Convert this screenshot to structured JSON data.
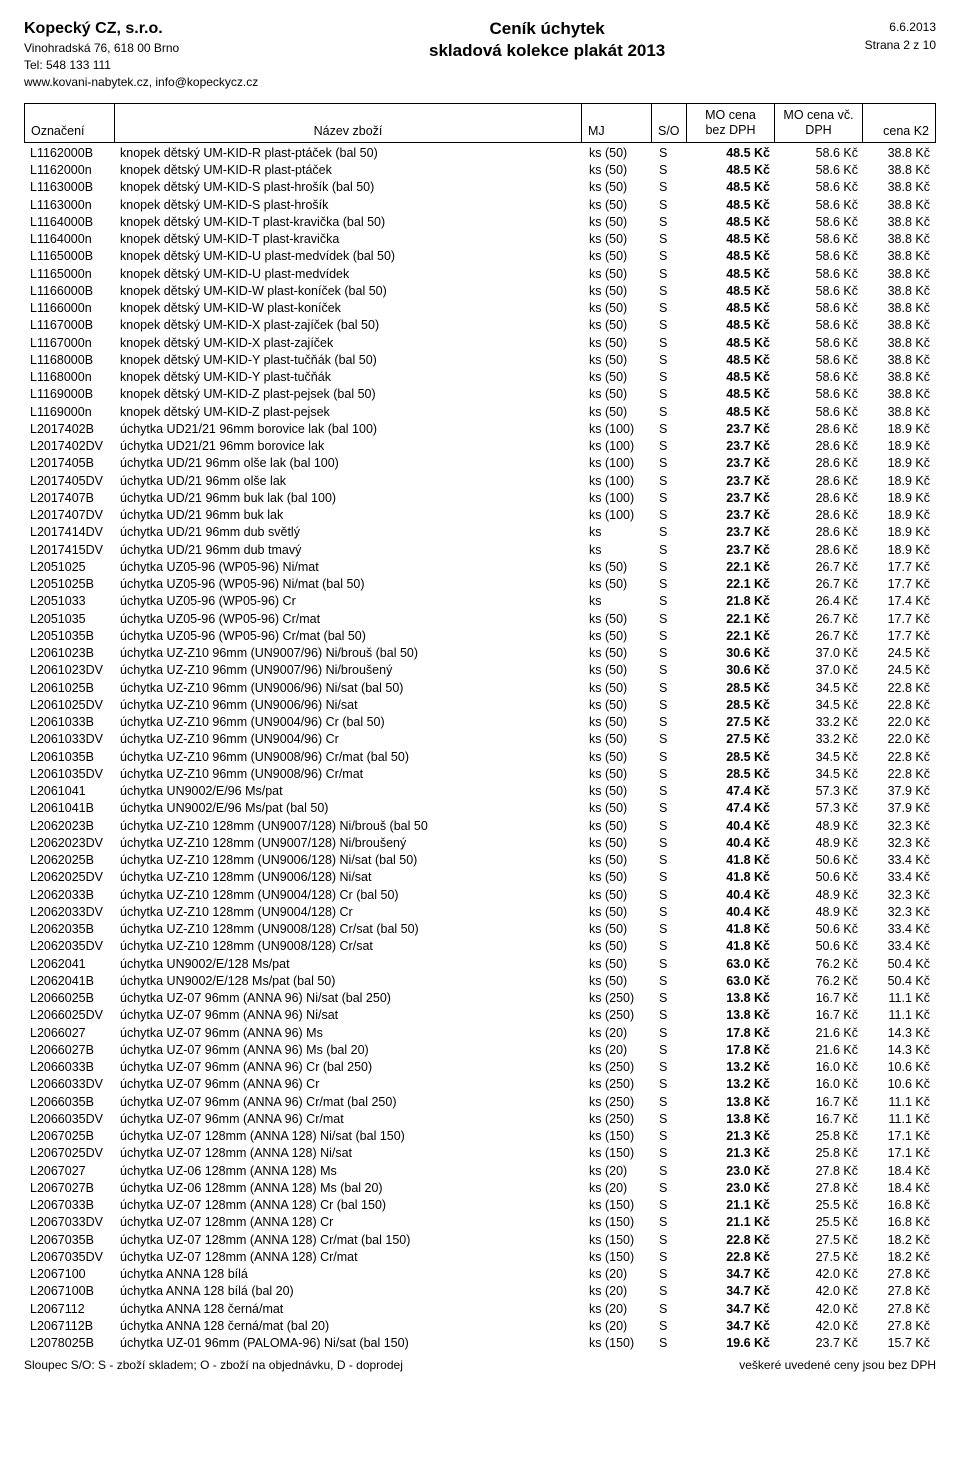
{
  "company": {
    "name": "Kopecký CZ, s.r.o.",
    "addr": "Vinohradská 76, 618 00 Brno",
    "tel": "Tel: 548 133 111",
    "web": "www.kovani-nabytek.cz, info@kopeckycz.cz"
  },
  "title": {
    "line1": "Ceník úchytek",
    "line2": "skladová kolekce plakát 2013"
  },
  "meta": {
    "date": "6.6.2013",
    "page": "Strana 2 z 10"
  },
  "columns": {
    "code": "Označení",
    "name": "Název zboží",
    "mj": "MJ",
    "so": "S/O",
    "mo1": "MO cena",
    "mo2": "bez DPH",
    "dph1": "MO cena vč.",
    "dph2": "DPH",
    "k2": "cena K2"
  },
  "footer": {
    "left": "Sloupec S/O: S - zboží skladem; O - zboží na objednávku, D - doprodej",
    "right": "veškeré uvedené ceny jsou bez DPH"
  },
  "rows": [
    {
      "c": "L1162000B",
      "n": "knopek dětský UM-KID-R plast-ptáček (bal 50)",
      "mj": "ks (50)",
      "so": "S",
      "mo": "48.5 Kč",
      "dph": "58.6 Kč",
      "k2": "38.8 Kč"
    },
    {
      "c": "L1162000n",
      "n": "knopek dětský UM-KID-R plast-ptáček",
      "mj": "ks (50)",
      "so": "S",
      "mo": "48.5 Kč",
      "dph": "58.6 Kč",
      "k2": "38.8 Kč"
    },
    {
      "c": "L1163000B",
      "n": "knopek dětský UM-KID-S plast-hrošík (bal 50)",
      "mj": "ks (50)",
      "so": "S",
      "mo": "48.5 Kč",
      "dph": "58.6 Kč",
      "k2": "38.8 Kč"
    },
    {
      "c": "L1163000n",
      "n": "knopek dětský UM-KID-S plast-hrošík",
      "mj": "ks (50)",
      "so": "S",
      "mo": "48.5 Kč",
      "dph": "58.6 Kč",
      "k2": "38.8 Kč"
    },
    {
      "c": "L1164000B",
      "n": "knopek dětský UM-KID-T plast-kravička (bal 50)",
      "mj": "ks (50)",
      "so": "S",
      "mo": "48.5 Kč",
      "dph": "58.6 Kč",
      "k2": "38.8 Kč"
    },
    {
      "c": "L1164000n",
      "n": "knopek dětský UM-KID-T plast-kravička",
      "mj": "ks (50)",
      "so": "S",
      "mo": "48.5 Kč",
      "dph": "58.6 Kč",
      "k2": "38.8 Kč"
    },
    {
      "c": "L1165000B",
      "n": "knopek dětský UM-KID-U plast-medvídek (bal 50)",
      "mj": "ks (50)",
      "so": "S",
      "mo": "48.5 Kč",
      "dph": "58.6 Kč",
      "k2": "38.8 Kč"
    },
    {
      "c": "L1165000n",
      "n": "knopek dětský UM-KID-U plast-medvídek",
      "mj": "ks (50)",
      "so": "S",
      "mo": "48.5 Kč",
      "dph": "58.6 Kč",
      "k2": "38.8 Kč"
    },
    {
      "c": "L1166000B",
      "n": "knopek dětský UM-KID-W plast-koníček (bal 50)",
      "mj": "ks (50)",
      "so": "S",
      "mo": "48.5 Kč",
      "dph": "58.6 Kč",
      "k2": "38.8 Kč"
    },
    {
      "c": "L1166000n",
      "n": "knopek dětský UM-KID-W plast-koníček",
      "mj": "ks (50)",
      "so": "S",
      "mo": "48.5 Kč",
      "dph": "58.6 Kč",
      "k2": "38.8 Kč"
    },
    {
      "c": "L1167000B",
      "n": "knopek dětský UM-KID-X plast-zajíček (bal 50)",
      "mj": "ks (50)",
      "so": "S",
      "mo": "48.5 Kč",
      "dph": "58.6 Kč",
      "k2": "38.8 Kč"
    },
    {
      "c": "L1167000n",
      "n": "knopek dětský UM-KID-X plast-zajíček",
      "mj": "ks (50)",
      "so": "S",
      "mo": "48.5 Kč",
      "dph": "58.6 Kč",
      "k2": "38.8 Kč"
    },
    {
      "c": "L1168000B",
      "n": "knopek dětský UM-KID-Y plast-tučňák (bal 50)",
      "mj": "ks (50)",
      "so": "S",
      "mo": "48.5 Kč",
      "dph": "58.6 Kč",
      "k2": "38.8 Kč"
    },
    {
      "c": "L1168000n",
      "n": "knopek dětský UM-KID-Y plast-tučňák",
      "mj": "ks (50)",
      "so": "S",
      "mo": "48.5 Kč",
      "dph": "58.6 Kč",
      "k2": "38.8 Kč"
    },
    {
      "c": "L1169000B",
      "n": "knopek dětský UM-KID-Z plast-pejsek (bal 50)",
      "mj": "ks (50)",
      "so": "S",
      "mo": "48.5 Kč",
      "dph": "58.6 Kč",
      "k2": "38.8 Kč"
    },
    {
      "c": "L1169000n",
      "n": "knopek dětský UM-KID-Z plast-pejsek",
      "mj": "ks (50)",
      "so": "S",
      "mo": "48.5 Kč",
      "dph": "58.6 Kč",
      "k2": "38.8 Kč"
    },
    {
      "c": "L2017402B",
      "n": "úchytka UD21/21 96mm borovice lak (bal 100)",
      "mj": "ks (100)",
      "so": "S",
      "mo": "23.7 Kč",
      "dph": "28.6 Kč",
      "k2": "18.9 Kč"
    },
    {
      "c": "L2017402DV",
      "n": "úchytka UD21/21 96mm borovice lak",
      "mj": "ks (100)",
      "so": "S",
      "mo": "23.7 Kč",
      "dph": "28.6 Kč",
      "k2": "18.9 Kč"
    },
    {
      "c": "L2017405B",
      "n": "úchytka UD/21 96mm olše lak (bal 100)",
      "mj": "ks (100)",
      "so": "S",
      "mo": "23.7 Kč",
      "dph": "28.6 Kč",
      "k2": "18.9 Kč"
    },
    {
      "c": "L2017405DV",
      "n": "úchytka UD/21 96mm olše lak",
      "mj": "ks (100)",
      "so": "S",
      "mo": "23.7 Kč",
      "dph": "28.6 Kč",
      "k2": "18.9 Kč"
    },
    {
      "c": "L2017407B",
      "n": "úchytka UD/21 96mm buk lak (bal 100)",
      "mj": "ks (100)",
      "so": "S",
      "mo": "23.7 Kč",
      "dph": "28.6 Kč",
      "k2": "18.9 Kč"
    },
    {
      "c": "L2017407DV",
      "n": "úchytka UD/21 96mm buk lak",
      "mj": "ks (100)",
      "so": "S",
      "mo": "23.7 Kč",
      "dph": "28.6 Kč",
      "k2": "18.9 Kč"
    },
    {
      "c": "L2017414DV",
      "n": "úchytka UD/21 96mm dub světlý",
      "mj": "ks",
      "so": "S",
      "mo": "23.7 Kč",
      "dph": "28.6 Kč",
      "k2": "18.9 Kč"
    },
    {
      "c": "L2017415DV",
      "n": "úchytka UD/21 96mm dub tmavý",
      "mj": "ks",
      "so": "S",
      "mo": "23.7 Kč",
      "dph": "28.6 Kč",
      "k2": "18.9 Kč"
    },
    {
      "c": "L2051025",
      "n": "úchytka UZ05-96 (WP05-96) Ni/mat",
      "mj": "ks (50)",
      "so": "S",
      "mo": "22.1 Kč",
      "dph": "26.7 Kč",
      "k2": "17.7 Kč"
    },
    {
      "c": "L2051025B",
      "n": "úchytka UZ05-96 (WP05-96) Ni/mat (bal 50)",
      "mj": "ks (50)",
      "so": "S",
      "mo": "22.1 Kč",
      "dph": "26.7 Kč",
      "k2": "17.7 Kč"
    },
    {
      "c": "L2051033",
      "n": "úchytka UZ05-96 (WP05-96) Cr",
      "mj": "ks",
      "so": "S",
      "mo": "21.8 Kč",
      "dph": "26.4 Kč",
      "k2": "17.4 Kč"
    },
    {
      "c": "L2051035",
      "n": "úchytka UZ05-96 (WP05-96) Cr/mat",
      "mj": "ks (50)",
      "so": "S",
      "mo": "22.1 Kč",
      "dph": "26.7 Kč",
      "k2": "17.7 Kč"
    },
    {
      "c": "L2051035B",
      "n": "úchytka UZ05-96 (WP05-96) Cr/mat (bal 50)",
      "mj": "ks (50)",
      "so": "S",
      "mo": "22.1 Kč",
      "dph": "26.7 Kč",
      "k2": "17.7 Kč"
    },
    {
      "c": "L2061023B",
      "n": "úchytka UZ-Z10 96mm (UN9007/96) Ni/brouš (bal 50)",
      "mj": "ks (50)",
      "so": "S",
      "mo": "30.6 Kč",
      "dph": "37.0 Kč",
      "k2": "24.5 Kč"
    },
    {
      "c": "L2061023DV",
      "n": "úchytka UZ-Z10 96mm (UN9007/96) Ni/broušený",
      "mj": "ks (50)",
      "so": "S",
      "mo": "30.6 Kč",
      "dph": "37.0 Kč",
      "k2": "24.5 Kč"
    },
    {
      "c": "L2061025B",
      "n": "úchytka UZ-Z10 96mm (UN9006/96) Ni/sat (bal 50)",
      "mj": "ks (50)",
      "so": "S",
      "mo": "28.5 Kč",
      "dph": "34.5 Kč",
      "k2": "22.8 Kč"
    },
    {
      "c": "L2061025DV",
      "n": "úchytka UZ-Z10 96mm (UN9006/96) Ni/sat",
      "mj": "ks (50)",
      "so": "S",
      "mo": "28.5 Kč",
      "dph": "34.5 Kč",
      "k2": "22.8 Kč"
    },
    {
      "c": "L2061033B",
      "n": "úchytka UZ-Z10 96mm (UN9004/96) Cr (bal 50)",
      "mj": "ks (50)",
      "so": "S",
      "mo": "27.5 Kč",
      "dph": "33.2 Kč",
      "k2": "22.0 Kč"
    },
    {
      "c": "L2061033DV",
      "n": "úchytka UZ-Z10 96mm (UN9004/96) Cr",
      "mj": "ks (50)",
      "so": "S",
      "mo": "27.5 Kč",
      "dph": "33.2 Kč",
      "k2": "22.0 Kč"
    },
    {
      "c": "L2061035B",
      "n": "úchytka UZ-Z10 96mm (UN9008/96) Cr/mat (bal 50)",
      "mj": "ks (50)",
      "so": "S",
      "mo": "28.5 Kč",
      "dph": "34.5 Kč",
      "k2": "22.8 Kč"
    },
    {
      "c": "L2061035DV",
      "n": "úchytka UZ-Z10 96mm (UN9008/96) Cr/mat",
      "mj": "ks (50)",
      "so": "S",
      "mo": "28.5 Kč",
      "dph": "34.5 Kč",
      "k2": "22.8 Kč"
    },
    {
      "c": "L2061041",
      "n": "úchytka UN9002/E/96 Ms/pat",
      "mj": "ks (50)",
      "so": "S",
      "mo": "47.4 Kč",
      "dph": "57.3 Kč",
      "k2": "37.9 Kč"
    },
    {
      "c": "L2061041B",
      "n": "úchytka UN9002/E/96 Ms/pat (bal 50)",
      "mj": "ks (50)",
      "so": "S",
      "mo": "47.4 Kč",
      "dph": "57.3 Kč",
      "k2": "37.9 Kč"
    },
    {
      "c": "L2062023B",
      "n": "úchytka UZ-Z10 128mm (UN9007/128) Ni/brouš (bal 50",
      "mj": "ks (50)",
      "so": "S",
      "mo": "40.4 Kč",
      "dph": "48.9 Kč",
      "k2": "32.3 Kč"
    },
    {
      "c": "L2062023DV",
      "n": "úchytka UZ-Z10 128mm (UN9007/128) Ni/broušený",
      "mj": "ks (50)",
      "so": "S",
      "mo": "40.4 Kč",
      "dph": "48.9 Kč",
      "k2": "32.3 Kč"
    },
    {
      "c": "L2062025B",
      "n": "úchytka UZ-Z10 128mm (UN9006/128) Ni/sat (bal 50)",
      "mj": "ks (50)",
      "so": "S",
      "mo": "41.8 Kč",
      "dph": "50.6 Kč",
      "k2": "33.4 Kč"
    },
    {
      "c": "L2062025DV",
      "n": "úchytka UZ-Z10 128mm (UN9006/128) Ni/sat",
      "mj": "ks (50)",
      "so": "S",
      "mo": "41.8 Kč",
      "dph": "50.6 Kč",
      "k2": "33.4 Kč"
    },
    {
      "c": "L2062033B",
      "n": "úchytka UZ-Z10 128mm (UN9004/128) Cr (bal 50)",
      "mj": "ks (50)",
      "so": "S",
      "mo": "40.4 Kč",
      "dph": "48.9 Kč",
      "k2": "32.3 Kč"
    },
    {
      "c": "L2062033DV",
      "n": "úchytka UZ-Z10 128mm (UN9004/128) Cr",
      "mj": "ks (50)",
      "so": "S",
      "mo": "40.4 Kč",
      "dph": "48.9 Kč",
      "k2": "32.3 Kč"
    },
    {
      "c": "L2062035B",
      "n": "úchytka UZ-Z10 128mm (UN9008/128) Cr/sat (bal 50)",
      "mj": "ks (50)",
      "so": "S",
      "mo": "41.8 Kč",
      "dph": "50.6 Kč",
      "k2": "33.4 Kč"
    },
    {
      "c": "L2062035DV",
      "n": "úchytka UZ-Z10 128mm (UN9008/128) Cr/sat",
      "mj": "ks (50)",
      "so": "S",
      "mo": "41.8 Kč",
      "dph": "50.6 Kč",
      "k2": "33.4 Kč"
    },
    {
      "c": "L2062041",
      "n": "úchytka UN9002/E/128 Ms/pat",
      "mj": "ks (50)",
      "so": "S",
      "mo": "63.0 Kč",
      "dph": "76.2 Kč",
      "k2": "50.4 Kč"
    },
    {
      "c": "L2062041B",
      "n": "úchytka UN9002/E/128 Ms/pat (bal 50)",
      "mj": "ks (50)",
      "so": "S",
      "mo": "63.0 Kč",
      "dph": "76.2 Kč",
      "k2": "50.4 Kč"
    },
    {
      "c": "L2066025B",
      "n": "úchytka UZ-07 96mm (ANNA 96) Ni/sat (bal 250)",
      "mj": "ks (250)",
      "so": "S",
      "mo": "13.8 Kč",
      "dph": "16.7 Kč",
      "k2": "11.1 Kč"
    },
    {
      "c": "L2066025DV",
      "n": "úchytka UZ-07 96mm (ANNA 96) Ni/sat",
      "mj": "ks (250)",
      "so": "S",
      "mo": "13.8 Kč",
      "dph": "16.7 Kč",
      "k2": "11.1 Kč"
    },
    {
      "c": "L2066027",
      "n": "úchytka UZ-07 96mm (ANNA 96) Ms",
      "mj": "ks (20)",
      "so": "S",
      "mo": "17.8 Kč",
      "dph": "21.6 Kč",
      "k2": "14.3 Kč"
    },
    {
      "c": "L2066027B",
      "n": "úchytka UZ-07 96mm (ANNA 96) Ms (bal 20)",
      "mj": "ks (20)",
      "so": "S",
      "mo": "17.8 Kč",
      "dph": "21.6 Kč",
      "k2": "14.3 Kč"
    },
    {
      "c": "L2066033B",
      "n": "úchytka UZ-07 96mm (ANNA 96) Cr (bal 250)",
      "mj": "ks (250)",
      "so": "S",
      "mo": "13.2 Kč",
      "dph": "16.0 Kč",
      "k2": "10.6 Kč"
    },
    {
      "c": "L2066033DV",
      "n": "úchytka UZ-07 96mm (ANNA 96) Cr",
      "mj": "ks (250)",
      "so": "S",
      "mo": "13.2 Kč",
      "dph": "16.0 Kč",
      "k2": "10.6 Kč"
    },
    {
      "c": "L2066035B",
      "n": "úchytka UZ-07 96mm (ANNA 96) Cr/mat (bal 250)",
      "mj": "ks (250)",
      "so": "S",
      "mo": "13.8 Kč",
      "dph": "16.7 Kč",
      "k2": "11.1 Kč"
    },
    {
      "c": "L2066035DV",
      "n": "úchytka UZ-07 96mm (ANNA 96) Cr/mat",
      "mj": "ks (250)",
      "so": "S",
      "mo": "13.8 Kč",
      "dph": "16.7 Kč",
      "k2": "11.1 Kč"
    },
    {
      "c": "L2067025B",
      "n": "úchytka UZ-07 128mm (ANNA 128) Ni/sat (bal 150)",
      "mj": "ks (150)",
      "so": "S",
      "mo": "21.3 Kč",
      "dph": "25.8 Kč",
      "k2": "17.1 Kč"
    },
    {
      "c": "L2067025DV",
      "n": "úchytka UZ-07 128mm (ANNA 128) Ni/sat",
      "mj": "ks (150)",
      "so": "S",
      "mo": "21.3 Kč",
      "dph": "25.8 Kč",
      "k2": "17.1 Kč"
    },
    {
      "c": "L2067027",
      "n": "úchytka UZ-06 128mm (ANNA 128) Ms",
      "mj": "ks (20)",
      "so": "S",
      "mo": "23.0 Kč",
      "dph": "27.8 Kč",
      "k2": "18.4 Kč"
    },
    {
      "c": "L2067027B",
      "n": "úchytka UZ-06 128mm (ANNA 128) Ms (bal 20)",
      "mj": "ks (20)",
      "so": "S",
      "mo": "23.0 Kč",
      "dph": "27.8 Kč",
      "k2": "18.4 Kč"
    },
    {
      "c": "L2067033B",
      "n": "úchytka UZ-07 128mm (ANNA 128) Cr (bal 150)",
      "mj": "ks (150)",
      "so": "S",
      "mo": "21.1 Kč",
      "dph": "25.5 Kč",
      "k2": "16.8 Kč"
    },
    {
      "c": "L2067033DV",
      "n": "úchytka UZ-07 128mm (ANNA 128) Cr",
      "mj": "ks (150)",
      "so": "S",
      "mo": "21.1 Kč",
      "dph": "25.5 Kč",
      "k2": "16.8 Kč"
    },
    {
      "c": "L2067035B",
      "n": "úchytka UZ-07 128mm (ANNA 128) Cr/mat (bal 150)",
      "mj": "ks (150)",
      "so": "S",
      "mo": "22.8 Kč",
      "dph": "27.5 Kč",
      "k2": "18.2 Kč"
    },
    {
      "c": "L2067035DV",
      "n": "úchytka UZ-07 128mm (ANNA 128) Cr/mat",
      "mj": "ks (150)",
      "so": "S",
      "mo": "22.8 Kč",
      "dph": "27.5 Kč",
      "k2": "18.2 Kč"
    },
    {
      "c": "L2067100",
      "n": "úchytka ANNA 128 bílá",
      "mj": "ks (20)",
      "so": "S",
      "mo": "34.7 Kč",
      "dph": "42.0 Kč",
      "k2": "27.8 Kč"
    },
    {
      "c": "L2067100B",
      "n": "úchytka ANNA 128 bílá (bal 20)",
      "mj": "ks (20)",
      "so": "S",
      "mo": "34.7 Kč",
      "dph": "42.0 Kč",
      "k2": "27.8 Kč"
    },
    {
      "c": "L2067112",
      "n": "úchytka ANNA 128 černá/mat",
      "mj": "ks (20)",
      "so": "S",
      "mo": "34.7 Kč",
      "dph": "42.0 Kč",
      "k2": "27.8 Kč"
    },
    {
      "c": "L2067112B",
      "n": "úchytka ANNA 128 černá/mat (bal 20)",
      "mj": "ks (20)",
      "so": "S",
      "mo": "34.7 Kč",
      "dph": "42.0 Kč",
      "k2": "27.8 Kč"
    },
    {
      "c": "L2078025B",
      "n": "úchytka UZ-01 96mm (PALOMA-96) Ni/sat (bal 150)",
      "mj": "ks (150)",
      "so": "S",
      "mo": "19.6 Kč",
      "dph": "23.7 Kč",
      "k2": "15.7 Kč"
    }
  ]
}
